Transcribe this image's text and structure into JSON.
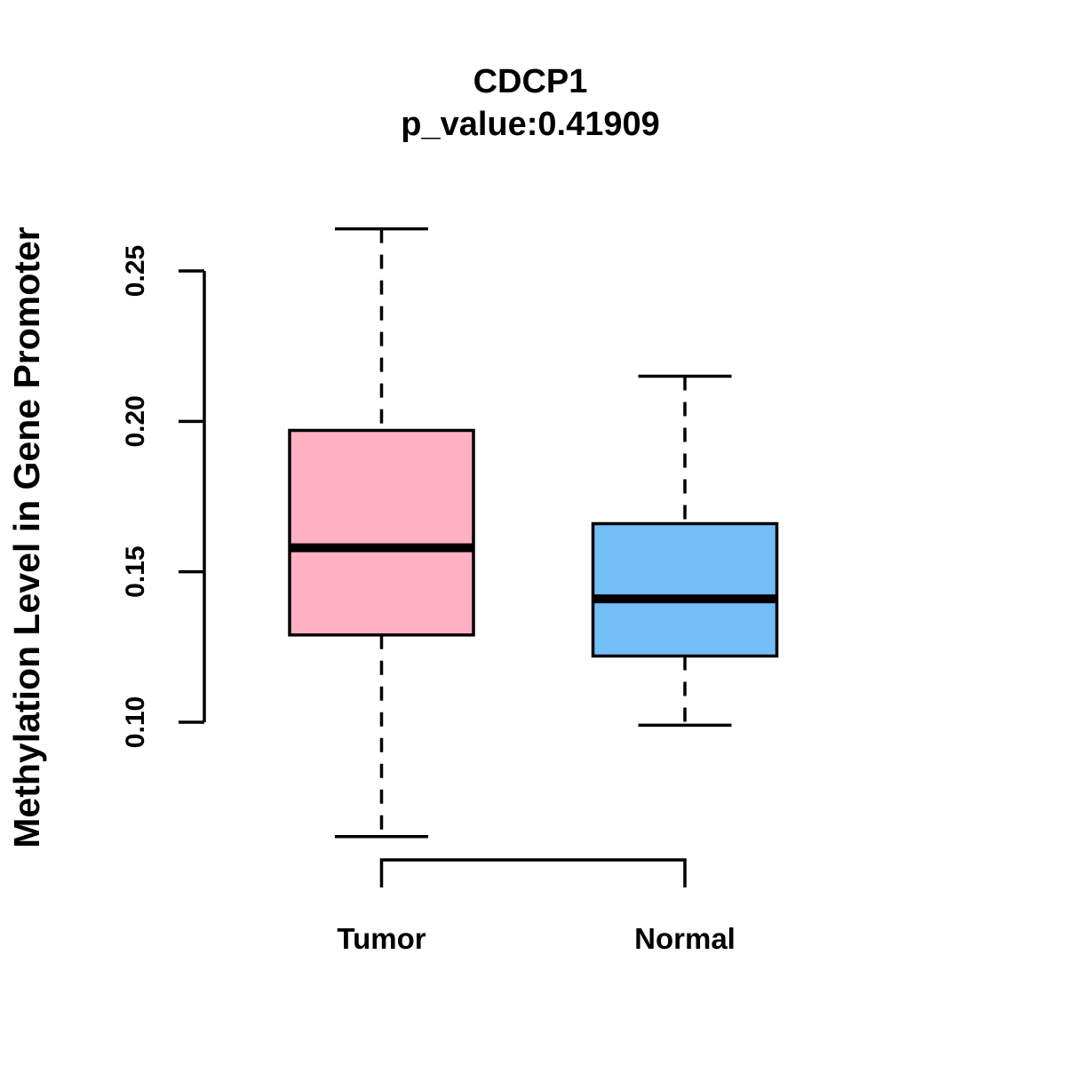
{
  "header": {
    "title": "CDCP1",
    "subtitle": "p_value:0.41909"
  },
  "axes": {
    "ylabel": "Methylation Level in Gene Promoter",
    "ytick_labels": [
      "0.10",
      "0.15",
      "0.20",
      "0.25"
    ]
  },
  "colors": {
    "tumor_fill": "#FFB0C3",
    "normal_fill": "#74BEF8",
    "line": "#000000",
    "background": "#FFFFFF"
  },
  "chart_data": {
    "type": "boxplot",
    "title": "CDCP1",
    "subtitle": "p_value:0.41909",
    "ylabel": "Methylation Level in Gene Promoter",
    "xlabel": "",
    "categories": [
      "Tumor",
      "Normal"
    ],
    "yticks": [
      0.1,
      0.15,
      0.2,
      0.25
    ],
    "ylim": [
      0.05,
      0.27
    ],
    "grid": false,
    "legend": "none",
    "series": [
      {
        "name": "Tumor",
        "min": 0.062,
        "q1": 0.129,
        "median": 0.158,
        "q3": 0.197,
        "max": 0.264,
        "color": "#FFB0C3"
      },
      {
        "name": "Normal",
        "min": 0.099,
        "q1": 0.122,
        "median": 0.141,
        "q3": 0.166,
        "max": 0.215,
        "color": "#74BEF8"
      }
    ]
  }
}
